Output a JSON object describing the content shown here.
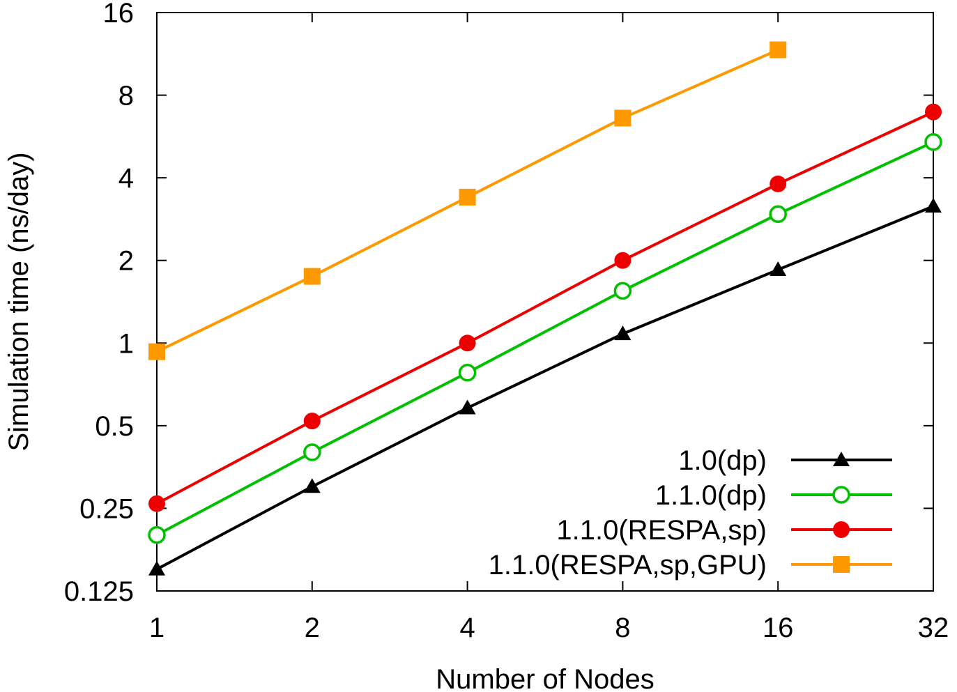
{
  "chart_data": {
    "type": "line",
    "xlabel": "Number of Nodes",
    "ylabel": "Simulation time (ns/day)",
    "x_scale": "log2",
    "y_scale": "log2",
    "x": [
      1,
      2,
      4,
      8,
      16,
      32
    ],
    "x_ticks": [
      1,
      2,
      4,
      8,
      16,
      32
    ],
    "y_ticks": [
      0.125,
      0.25,
      0.5,
      1,
      2,
      4,
      8,
      16
    ],
    "xlim": [
      1,
      32
    ],
    "ylim": [
      0.125,
      16
    ],
    "grid": false,
    "legend_position": "bottom-right",
    "series": [
      {
        "name": "1.0(dp)",
        "color": "#000000",
        "marker": "filled-triangle",
        "values": [
          0.15,
          0.3,
          0.58,
          1.08,
          1.85,
          3.15
        ]
      },
      {
        "name": "1.1.0(dp)",
        "color": "#00c000",
        "marker": "open-circle",
        "values": [
          0.2,
          0.4,
          0.78,
          1.55,
          2.95,
          5.4
        ]
      },
      {
        "name": "1.1.0(RESPA,sp)",
        "color": "#ee0000",
        "marker": "filled-circle",
        "values": [
          0.26,
          0.52,
          1.0,
          2.0,
          3.8,
          6.95
        ]
      },
      {
        "name": "1.1.0(RESPA,sp,GPU)",
        "color": "#ff9900",
        "marker": "filled-square",
        "values": [
          0.93,
          1.75,
          3.4,
          6.6,
          11.7,
          null
        ]
      }
    ]
  }
}
